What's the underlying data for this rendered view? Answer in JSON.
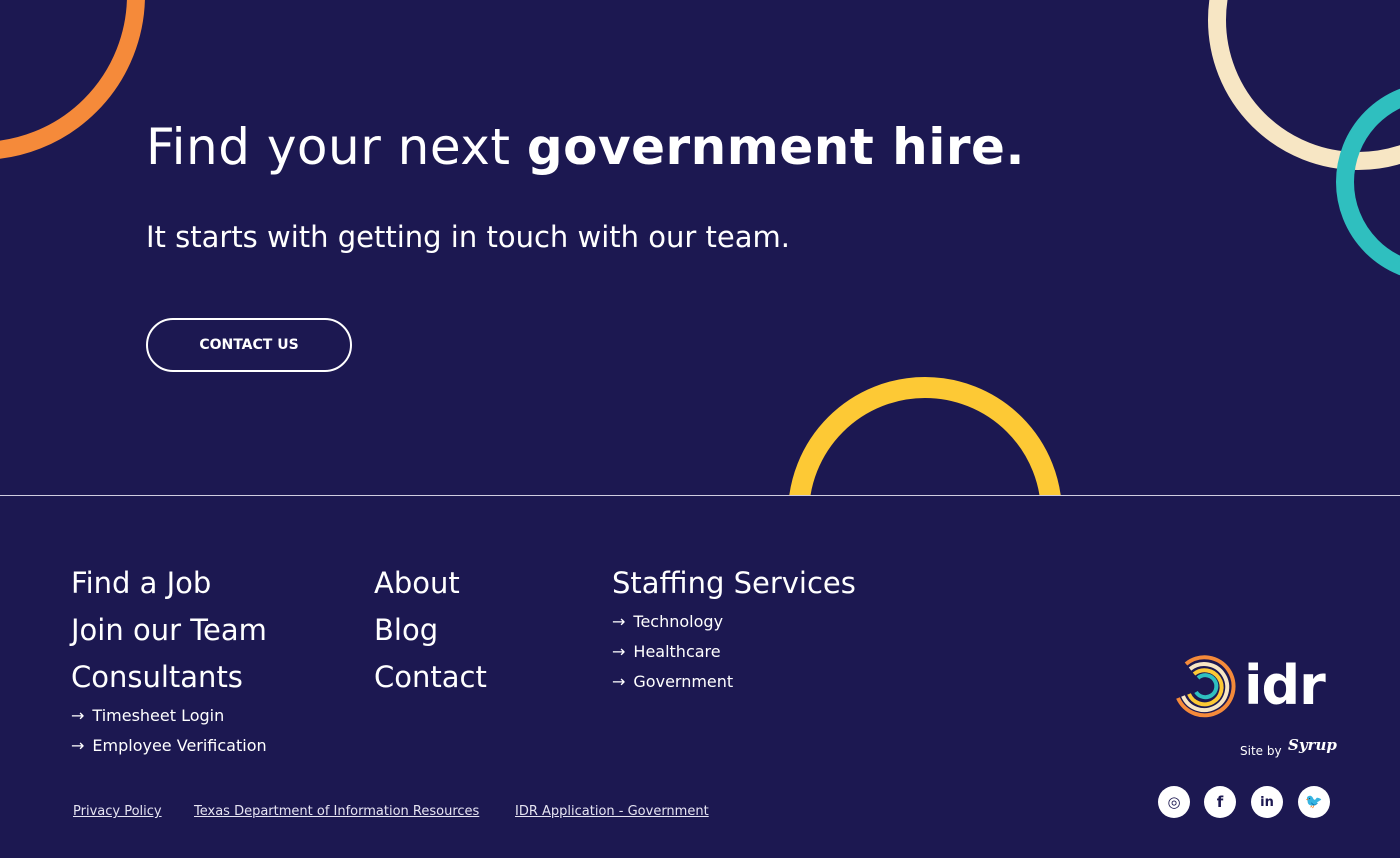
{
  "hero": {
    "title_regular": "Find your next ",
    "title_bold": "government hire.",
    "subtitle": "It starts with getting in touch with our team.",
    "cta": "CONTACT US"
  },
  "colors": {
    "background": "#1c1851",
    "orange": "#f58a3a",
    "cream": "#f7e6c4",
    "teal": "#2fbfbf",
    "yellow": "#fdc935"
  },
  "footer": {
    "col1": {
      "links": [
        "Find a Job",
        "Join our Team",
        "Consultants"
      ],
      "sublinks": [
        "Timesheet Login",
        "Employee Verification"
      ]
    },
    "col2": {
      "links": [
        "About",
        "Blog",
        "Contact"
      ]
    },
    "col3": {
      "title": "Staffing Services",
      "sublinks": [
        "Technology",
        "Healthcare",
        "Government"
      ]
    },
    "legal": [
      "Privacy Policy",
      "Texas Department of Information Resources",
      "IDR Application - Government"
    ],
    "logo": "idr",
    "site_by": "Site by",
    "agency": "Syrup",
    "social": [
      {
        "icon": "instagram-icon",
        "glyph": "◎"
      },
      {
        "icon": "facebook-icon",
        "glyph": "f"
      },
      {
        "icon": "linkedin-icon",
        "glyph": "in"
      },
      {
        "icon": "twitter-icon",
        "glyph": "🐦"
      }
    ],
    "arrow": "→"
  }
}
